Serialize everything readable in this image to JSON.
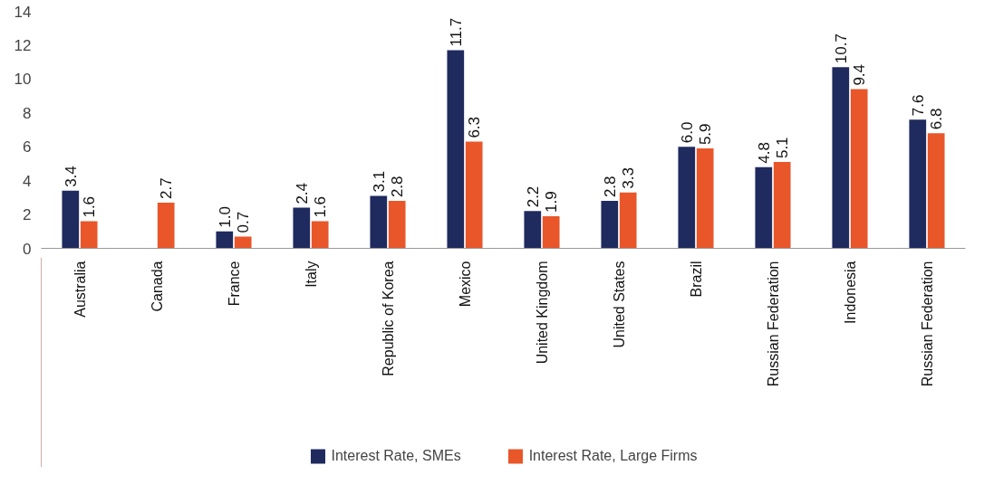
{
  "chart_data": {
    "type": "bar",
    "categories": [
      "Australia",
      "Canada",
      "France",
      "Italy",
      "Republic of Korea",
      "Mexico",
      "United Kingdom",
      "United States",
      "Brazil",
      "Russian Federation",
      "Indonesia",
      "Russian Federation"
    ],
    "series": [
      {
        "name": "Interest Rate, SMEs",
        "color": "#1f2a5e",
        "values": [
          3.4,
          null,
          1.0,
          2.4,
          3.1,
          11.7,
          2.2,
          2.8,
          6.0,
          4.8,
          10.7,
          7.6
        ],
        "value_labels": [
          "3.4",
          null,
          "1.0",
          "2.4",
          "3.1",
          "11.7",
          "2.2",
          "2.8",
          "6.0",
          "4.8",
          "10.7",
          "7.6"
        ]
      },
      {
        "name": "Interest Rate, Large Firms",
        "color": "#e8562a",
        "values": [
          1.6,
          2.7,
          0.7,
          1.6,
          2.8,
          6.3,
          1.9,
          3.3,
          5.9,
          5.1,
          9.4,
          6.8
        ],
        "value_labels": [
          "1.6",
          "2.7",
          "0.7",
          "1.6",
          "2.8",
          "6.3",
          "1.9",
          "3.3",
          "5.9",
          "5.1",
          "9.4",
          "6.8"
        ]
      }
    ],
    "ylim": [
      0,
      14
    ],
    "yticks": [
      0,
      2,
      4,
      6,
      8,
      10,
      12,
      14
    ],
    "grid": false,
    "legend": "bottom"
  }
}
